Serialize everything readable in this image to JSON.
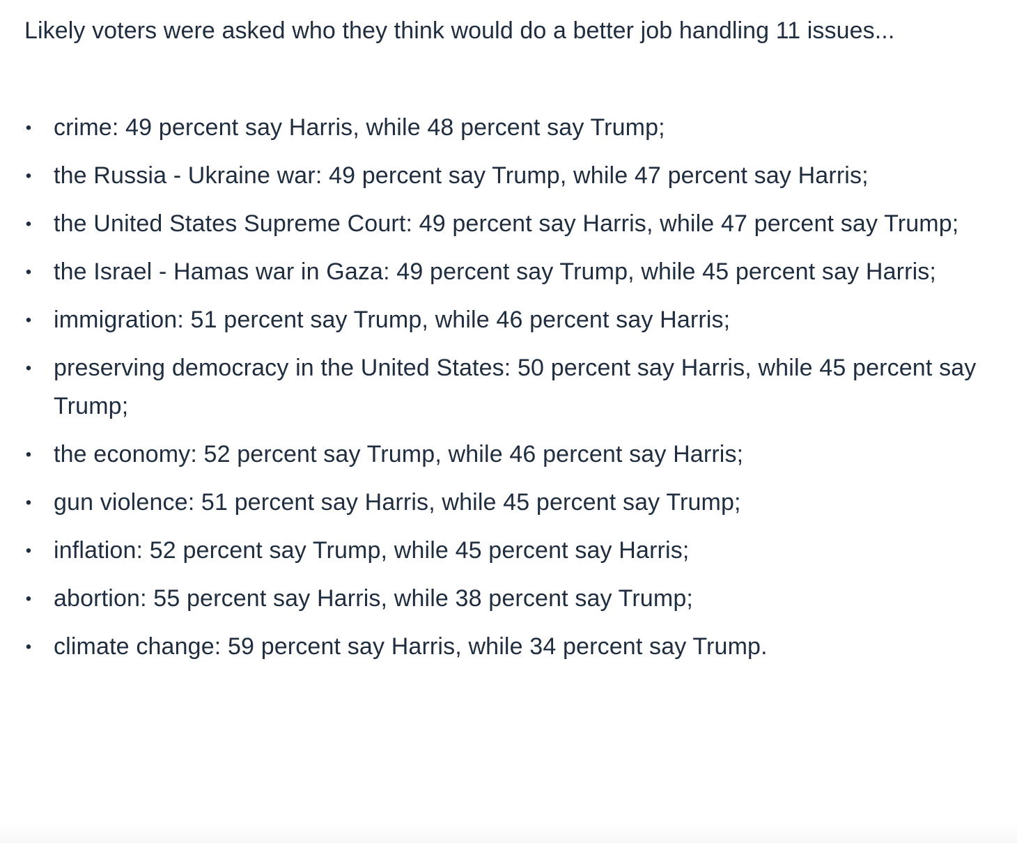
{
  "intro": "Likely voters were asked who they think would do a better job handling 11 issues...",
  "issues": [
    {
      "bullet": "•",
      "text": "crime: 49 percent say Harris, while 48 percent say Trump;"
    },
    {
      "bullet": "•",
      "text": "the Russia - Ukraine war: 49 percent say Trump, while 47 percent say Harris;"
    },
    {
      "bullet": "•",
      "text": "the United States Supreme Court: 49 percent say Harris, while 47 percent say Trump;"
    },
    {
      "bullet": "•",
      "text": "the Israel - Hamas war in Gaza: 49 percent say Trump, while 45 percent say Harris;"
    },
    {
      "bullet": "•",
      "text": "immigration: 51 percent say Trump, while 46 percent say Harris;"
    },
    {
      "bullet": "•",
      "text": "preserving democracy in the United States: 50 percent say Harris, while 45 percent say Trump;"
    },
    {
      "bullet": "•",
      "text": "the economy: 52 percent say Trump, while 46 percent say Harris;"
    },
    {
      "bullet": "•",
      "text": "gun violence: 51 percent say Harris, while 45 percent say Trump;"
    },
    {
      "bullet": "•",
      "text": "inflation: 52 percent say Trump, while 45 percent say Harris;"
    },
    {
      "bullet": "•",
      "text": "abortion: 55 percent say Harris, while 38 percent say Trump;"
    },
    {
      "bullet": "•",
      "text": "climate change: 59 percent say Harris, while 34 percent say Trump."
    }
  ]
}
